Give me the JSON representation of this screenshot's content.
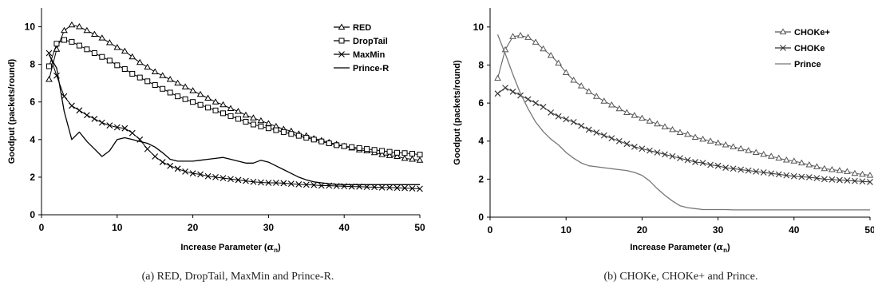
{
  "chart_data": [
    {
      "type": "line",
      "caption": "(a) RED, DropTail, MaxMin and Prince-R.",
      "xlabel_main": "Increase Parameter (",
      "xlabel_sym": "α",
      "xlabel_sub": "n",
      "xlabel_tail": ")",
      "ylabel": "Goodput (packets/round)",
      "xlim": [
        0,
        50
      ],
      "ylim": [
        0,
        11
      ],
      "xticks": [
        "0",
        "10",
        "20",
        "30",
        "40",
        "50"
      ],
      "yticks": [
        "0",
        "2",
        "4",
        "6",
        "8",
        "10"
      ],
      "xtick_values": [
        0,
        10,
        20,
        30,
        40,
        50
      ],
      "ytick_values": [
        0,
        2,
        4,
        6,
        8,
        10
      ],
      "grid": false,
      "legend_position": "top-right",
      "series": [
        {
          "name": "RED",
          "marker": "triangle",
          "x": [
            1,
            2,
            3,
            4,
            5,
            6,
            7,
            8,
            9,
            10,
            11,
            12,
            13,
            14,
            15,
            16,
            17,
            18,
            19,
            20,
            21,
            22,
            23,
            24,
            25,
            26,
            27,
            28,
            29,
            30,
            31,
            32,
            33,
            34,
            35,
            36,
            37,
            38,
            39,
            40,
            41,
            42,
            43,
            44,
            45,
            46,
            47,
            48,
            49,
            50
          ],
          "y": [
            7.2,
            8.8,
            9.8,
            10.1,
            10.0,
            9.8,
            9.6,
            9.4,
            9.15,
            8.9,
            8.7,
            8.4,
            8.1,
            7.85,
            7.6,
            7.4,
            7.2,
            7.0,
            6.8,
            6.6,
            6.4,
            6.2,
            6.0,
            5.85,
            5.65,
            5.5,
            5.3,
            5.15,
            5.0,
            4.85,
            4.7,
            4.55,
            4.45,
            4.3,
            4.2,
            4.05,
            3.95,
            3.85,
            3.75,
            3.65,
            3.55,
            3.45,
            3.4,
            3.3,
            3.2,
            3.15,
            3.1,
            3.0,
            2.95,
            2.9
          ]
        },
        {
          "name": "DropTail",
          "marker": "square",
          "x": [
            1,
            2,
            3,
            4,
            5,
            6,
            7,
            8,
            9,
            10,
            11,
            12,
            13,
            14,
            15,
            16,
            17,
            18,
            19,
            20,
            21,
            22,
            23,
            24,
            25,
            26,
            27,
            28,
            29,
            30,
            31,
            32,
            33,
            34,
            35,
            36,
            37,
            38,
            39,
            40,
            41,
            42,
            43,
            44,
            45,
            46,
            47,
            48,
            49,
            50
          ],
          "y": [
            7.9,
            9.1,
            9.3,
            9.2,
            9.0,
            8.8,
            8.6,
            8.4,
            8.2,
            7.95,
            7.75,
            7.5,
            7.3,
            7.1,
            6.9,
            6.7,
            6.5,
            6.3,
            6.15,
            6.0,
            5.85,
            5.7,
            5.55,
            5.4,
            5.25,
            5.1,
            4.95,
            4.8,
            4.7,
            4.6,
            4.5,
            4.4,
            4.3,
            4.2,
            4.1,
            4.0,
            3.9,
            3.8,
            3.7,
            3.65,
            3.6,
            3.55,
            3.5,
            3.45,
            3.4,
            3.35,
            3.3,
            3.28,
            3.25,
            3.2
          ]
        },
        {
          "name": "MaxMin",
          "marker": "x",
          "x": [
            1,
            2,
            3,
            4,
            5,
            6,
            7,
            8,
            9,
            10,
            11,
            12,
            13,
            14,
            15,
            16,
            17,
            18,
            19,
            20,
            21,
            22,
            23,
            24,
            25,
            26,
            27,
            28,
            29,
            30,
            31,
            32,
            33,
            34,
            35,
            36,
            37,
            38,
            39,
            40,
            41,
            42,
            43,
            44,
            45,
            46,
            47,
            48,
            49,
            50
          ],
          "y": [
            8.6,
            7.4,
            6.3,
            5.8,
            5.55,
            5.3,
            5.1,
            4.9,
            4.75,
            4.65,
            4.6,
            4.35,
            4.0,
            3.5,
            3.1,
            2.8,
            2.6,
            2.45,
            2.3,
            2.2,
            2.15,
            2.05,
            2.0,
            1.95,
            1.9,
            1.85,
            1.8,
            1.75,
            1.72,
            1.7,
            1.7,
            1.68,
            1.65,
            1.62,
            1.6,
            1.58,
            1.55,
            1.55,
            1.53,
            1.52,
            1.5,
            1.5,
            1.48,
            1.47,
            1.45,
            1.45,
            1.43,
            1.42,
            1.4,
            1.38
          ]
        },
        {
          "name": "Prince-R",
          "marker": "none",
          "x": [
            1,
            2,
            3,
            4,
            5,
            6,
            7,
            8,
            9,
            10,
            11,
            12,
            13,
            14,
            15,
            16,
            17,
            18,
            19,
            20,
            21,
            22,
            23,
            24,
            25,
            26,
            27,
            28,
            29,
            30,
            31,
            32,
            33,
            34,
            35,
            36,
            37,
            38,
            39,
            40,
            41,
            42,
            43,
            44,
            45,
            46,
            47,
            48,
            49,
            50
          ],
          "y": [
            8.5,
            7.8,
            5.5,
            4.0,
            4.4,
            3.9,
            3.5,
            3.1,
            3.4,
            4.0,
            4.1,
            4.0,
            3.9,
            3.8,
            3.6,
            3.3,
            2.95,
            2.85,
            2.85,
            2.85,
            2.9,
            2.95,
            3.0,
            3.05,
            2.95,
            2.85,
            2.75,
            2.75,
            2.9,
            2.8,
            2.6,
            2.4,
            2.2,
            2.0,
            1.85,
            1.75,
            1.7,
            1.65,
            1.62,
            1.6,
            1.6,
            1.6,
            1.6,
            1.6,
            1.6,
            1.6,
            1.6,
            1.6,
            1.6,
            1.6
          ]
        }
      ]
    },
    {
      "type": "line",
      "caption": "(b) CHOKe, CHOKe+ and Prince.",
      "xlabel_main": "Increase Parameter (",
      "xlabel_sym": "α",
      "xlabel_sub": "n",
      "xlabel_tail": ")",
      "ylabel": "Goodput (packets/round)",
      "xlim": [
        0,
        50
      ],
      "ylim": [
        0,
        11
      ],
      "xticks": [
        "0",
        "10",
        "20",
        "30",
        "40",
        "50"
      ],
      "yticks": [
        "0",
        "2",
        "4",
        "6",
        "8",
        "10"
      ],
      "xtick_values": [
        0,
        10,
        20,
        30,
        40,
        50
      ],
      "ytick_values": [
        0,
        2,
        4,
        6,
        8,
        10
      ],
      "grid": false,
      "legend_position": "top-right",
      "series": [
        {
          "name": "CHOKe+",
          "marker": "triangle",
          "x": [
            1,
            2,
            3,
            4,
            5,
            6,
            7,
            8,
            9,
            10,
            11,
            12,
            13,
            14,
            15,
            16,
            17,
            18,
            19,
            20,
            21,
            22,
            23,
            24,
            25,
            26,
            27,
            28,
            29,
            30,
            31,
            32,
            33,
            34,
            35,
            36,
            37,
            38,
            39,
            40,
            41,
            42,
            43,
            44,
            45,
            46,
            47,
            48,
            49,
            50
          ],
          "y": [
            7.3,
            8.8,
            9.5,
            9.55,
            9.45,
            9.2,
            8.85,
            8.5,
            8.1,
            7.6,
            7.2,
            6.9,
            6.6,
            6.35,
            6.1,
            5.9,
            5.7,
            5.5,
            5.35,
            5.2,
            5.05,
            4.9,
            4.75,
            4.6,
            4.45,
            4.35,
            4.2,
            4.1,
            4.0,
            3.9,
            3.8,
            3.7,
            3.6,
            3.5,
            3.4,
            3.3,
            3.2,
            3.1,
            3.0,
            2.95,
            2.85,
            2.75,
            2.65,
            2.55,
            2.5,
            2.45,
            2.4,
            2.3,
            2.25,
            2.2
          ]
        },
        {
          "name": "CHOKe",
          "marker": "x",
          "x": [
            1,
            2,
            3,
            4,
            5,
            6,
            7,
            8,
            9,
            10,
            11,
            12,
            13,
            14,
            15,
            16,
            17,
            18,
            19,
            20,
            21,
            22,
            23,
            24,
            25,
            26,
            27,
            28,
            29,
            30,
            31,
            32,
            33,
            34,
            35,
            36,
            37,
            38,
            39,
            40,
            41,
            42,
            43,
            44,
            45,
            46,
            47,
            48,
            49,
            50
          ],
          "y": [
            6.5,
            6.8,
            6.6,
            6.4,
            6.2,
            6.0,
            5.8,
            5.5,
            5.3,
            5.15,
            5.0,
            4.8,
            4.6,
            4.45,
            4.3,
            4.15,
            4.0,
            3.85,
            3.7,
            3.6,
            3.5,
            3.4,
            3.3,
            3.2,
            3.1,
            3.0,
            2.9,
            2.85,
            2.75,
            2.7,
            2.6,
            2.55,
            2.5,
            2.45,
            2.4,
            2.35,
            2.3,
            2.25,
            2.2,
            2.15,
            2.12,
            2.1,
            2.05,
            2.0,
            1.98,
            1.95,
            1.93,
            1.9,
            1.88,
            1.85
          ]
        },
        {
          "name": "Prince",
          "marker": "none",
          "x": [
            1,
            2,
            3,
            4,
            5,
            6,
            7,
            8,
            9,
            10,
            11,
            12,
            13,
            14,
            15,
            16,
            17,
            18,
            19,
            20,
            21,
            22,
            23,
            24,
            25,
            26,
            27,
            28,
            29,
            30,
            31,
            32,
            33,
            34,
            35,
            36,
            37,
            38,
            39,
            40,
            41,
            42,
            43,
            44,
            45,
            46,
            47,
            48,
            49,
            50
          ],
          "y": [
            9.6,
            8.6,
            7.5,
            6.5,
            5.7,
            5.0,
            4.5,
            4.1,
            3.8,
            3.4,
            3.1,
            2.85,
            2.7,
            2.65,
            2.6,
            2.55,
            2.5,
            2.45,
            2.35,
            2.2,
            1.9,
            1.5,
            1.15,
            0.85,
            0.6,
            0.5,
            0.45,
            0.4,
            0.4,
            0.4,
            0.4,
            0.38,
            0.38,
            0.38,
            0.38,
            0.38,
            0.38,
            0.38,
            0.38,
            0.38,
            0.38,
            0.38,
            0.38,
            0.38,
            0.38,
            0.38,
            0.38,
            0.38,
            0.38,
            0.38
          ]
        }
      ]
    }
  ]
}
